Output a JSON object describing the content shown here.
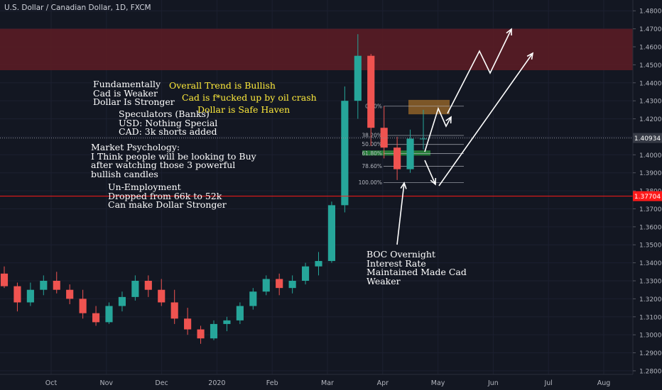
{
  "header": {
    "title": "U.S. Dollar / Canadian Dollar, 1D, FXCM"
  },
  "colors": {
    "background": "#131722",
    "up_candle": "#26a69a",
    "down_candle": "#ef5350",
    "resistance_zone": "#5a1c25",
    "support_line": "#ff1a1a",
    "annotation_text": "#ffffff",
    "highlight_text": "#ffeb3b"
  },
  "annotations": {
    "fundamentally": "Fundamentally\nCad is Weaker\nDollar Is Stronger",
    "trend": "Overall Trend is Bullish",
    "oil": "Cad is f*ucked up by oil crash",
    "haven": "Dollar is Safe Haven",
    "speculators": "Speculators (Banks)\nUSD: Nothing Special\nCAD: 3k shorts added",
    "psychology": "Market Psychology:\nI Think people will be looking to Buy\nafter watching those 3 powerful\nbullish candles",
    "employment": "Un-Employment\nDropped from 66k to 52k\nCan make Dollar Stronger",
    "boc": "BOC Overnight\nInterest Rate\nMaintained Made Cad\nWeaker"
  },
  "chart_data": {
    "type": "candlestick",
    "symbol": "U.S. Dollar / Canadian Dollar",
    "timeframe": "1D",
    "y_axis": {
      "range": [
        1.278,
        1.486
      ],
      "ticks": [
        "1.48000",
        "1.47000",
        "1.46000",
        "1.45000",
        "1.44000",
        "1.43000",
        "1.42000",
        "1.41000",
        "1.40000",
        "1.39000",
        "1.38000",
        "1.37000",
        "1.36000",
        "1.35000",
        "1.34000",
        "1.33000",
        "1.32000",
        "1.31000",
        "1.30000",
        "1.29000",
        "1.28000"
      ]
    },
    "x_axis": {
      "ticks": [
        "Oct",
        "Nov",
        "Dec",
        "2020",
        "Feb",
        "Mar",
        "Apr",
        "May",
        "Jun",
        "Jul",
        "Aug"
      ]
    },
    "last_price": {
      "label": "1.40934",
      "value": 1.40934
    },
    "support_level": {
      "label": "1.37704",
      "value": 1.37704
    },
    "resistance_zone": [
      1.447,
      1.47
    ],
    "fibonacci": {
      "high": 1.427,
      "low": 1.3845,
      "levels": [
        {
          "label": "0.00%",
          "value": 1.427
        },
        {
          "label": "38.20%",
          "value": 1.41077
        },
        {
          "label": "50.00%",
          "value": 1.40575
        },
        {
          "label": "61.80%",
          "value": 1.40074
        },
        {
          "label": "78.60%",
          "value": 1.3936
        },
        {
          "label": "100.00%",
          "value": 1.3845
        }
      ]
    },
    "candles_sampled_weekly": [
      {
        "o": 1.334,
        "h": 1.338,
        "l": 1.326,
        "c": 1.327
      },
      {
        "o": 1.327,
        "h": 1.329,
        "l": 1.313,
        "c": 1.318
      },
      {
        "o": 1.318,
        "h": 1.329,
        "l": 1.316,
        "c": 1.325
      },
      {
        "o": 1.325,
        "h": 1.333,
        "l": 1.322,
        "c": 1.33
      },
      {
        "o": 1.33,
        "h": 1.335,
        "l": 1.323,
        "c": 1.325
      },
      {
        "o": 1.325,
        "h": 1.328,
        "l": 1.317,
        "c": 1.32
      },
      {
        "o": 1.32,
        "h": 1.325,
        "l": 1.309,
        "c": 1.312
      },
      {
        "o": 1.312,
        "h": 1.316,
        "l": 1.305,
        "c": 1.307
      },
      {
        "o": 1.307,
        "h": 1.318,
        "l": 1.306,
        "c": 1.316
      },
      {
        "o": 1.316,
        "h": 1.324,
        "l": 1.313,
        "c": 1.321
      },
      {
        "o": 1.321,
        "h": 1.333,
        "l": 1.319,
        "c": 1.33
      },
      {
        "o": 1.33,
        "h": 1.333,
        "l": 1.321,
        "c": 1.325
      },
      {
        "o": 1.325,
        "h": 1.331,
        "l": 1.316,
        "c": 1.318
      },
      {
        "o": 1.318,
        "h": 1.325,
        "l": 1.306,
        "c": 1.309
      },
      {
        "o": 1.309,
        "h": 1.315,
        "l": 1.3,
        "c": 1.303
      },
      {
        "o": 1.303,
        "h": 1.305,
        "l": 1.295,
        "c": 1.298
      },
      {
        "o": 1.298,
        "h": 1.308,
        "l": 1.297,
        "c": 1.306
      },
      {
        "o": 1.306,
        "h": 1.31,
        "l": 1.302,
        "c": 1.308
      },
      {
        "o": 1.308,
        "h": 1.318,
        "l": 1.306,
        "c": 1.316
      },
      {
        "o": 1.316,
        "h": 1.326,
        "l": 1.314,
        "c": 1.324
      },
      {
        "o": 1.324,
        "h": 1.333,
        "l": 1.322,
        "c": 1.331
      },
      {
        "o": 1.331,
        "h": 1.334,
        "l": 1.322,
        "c": 1.326
      },
      {
        "o": 1.326,
        "h": 1.333,
        "l": 1.323,
        "c": 1.33
      },
      {
        "o": 1.33,
        "h": 1.34,
        "l": 1.328,
        "c": 1.338
      },
      {
        "o": 1.338,
        "h": 1.346,
        "l": 1.333,
        "c": 1.341
      },
      {
        "o": 1.341,
        "h": 1.374,
        "l": 1.34,
        "c": 1.372
      },
      {
        "o": 1.372,
        "h": 1.438,
        "l": 1.368,
        "c": 1.43
      },
      {
        "o": 1.43,
        "h": 1.467,
        "l": 1.42,
        "c": 1.455
      },
      {
        "o": 1.455,
        "h": 1.456,
        "l": 1.405,
        "c": 1.415
      },
      {
        "o": 1.415,
        "h": 1.427,
        "l": 1.398,
        "c": 1.404
      },
      {
        "o": 1.404,
        "h": 1.41,
        "l": 1.386,
        "c": 1.392
      },
      {
        "o": 1.392,
        "h": 1.414,
        "l": 1.39,
        "c": 1.409
      },
      {
        "o": 1.409,
        "h": 1.425,
        "l": 1.403,
        "c": 1.409
      }
    ]
  }
}
